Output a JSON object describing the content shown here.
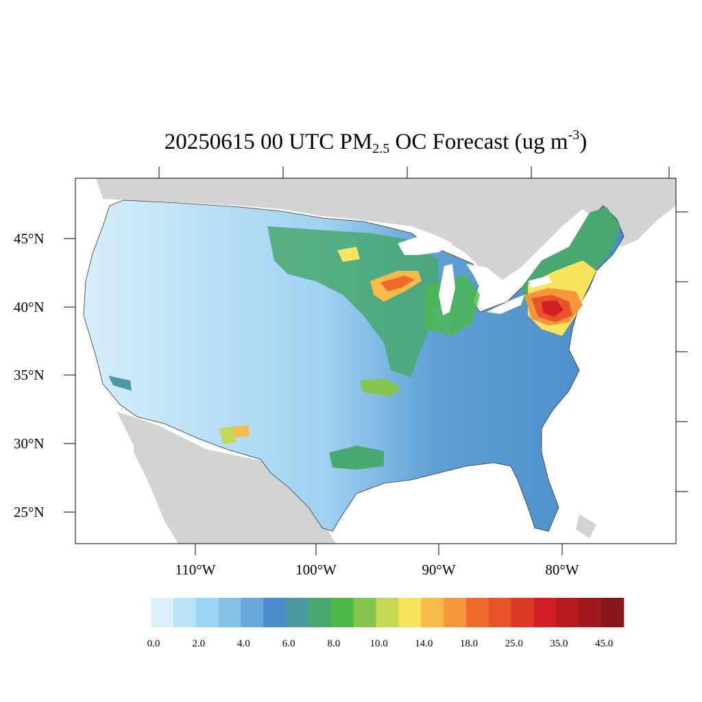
{
  "title": {
    "main": "20250615 00 UTC PM",
    "sub": "2.5",
    "middle": " OC Forecast (ug m",
    "sup": "-3",
    "end": ")"
  },
  "map": {
    "lat_labels": [
      "45°N",
      "40°N",
      "35°N",
      "30°N",
      "25°N"
    ],
    "lon_labels": [
      "110°W",
      "100°W",
      "90°W",
      "80°W"
    ],
    "land_color": "#d3d3d3",
    "water_color": "#ffffff"
  },
  "colorbar": {
    "labels": [
      "0.0",
      "2.0",
      "4.0",
      "6.0",
      "8.0",
      "10.0",
      "14.0",
      "18.0",
      "25.0",
      "35.0",
      "45.0"
    ],
    "colors": [
      "#dcf0fa",
      "#bbe3f7",
      "#9cd6f4",
      "#86c1e6",
      "#6aa7da",
      "#4a8bc9",
      "#4b9aa0",
      "#48a870",
      "#4cb94a",
      "#86c64e",
      "#c6d756",
      "#f7e45c",
      "#f7bb4b",
      "#f5953c",
      "#f06a2c",
      "#e85428",
      "#dc3a25",
      "#d11f25",
      "#b81a21",
      "#9e1a1d",
      "#86161a"
    ]
  }
}
